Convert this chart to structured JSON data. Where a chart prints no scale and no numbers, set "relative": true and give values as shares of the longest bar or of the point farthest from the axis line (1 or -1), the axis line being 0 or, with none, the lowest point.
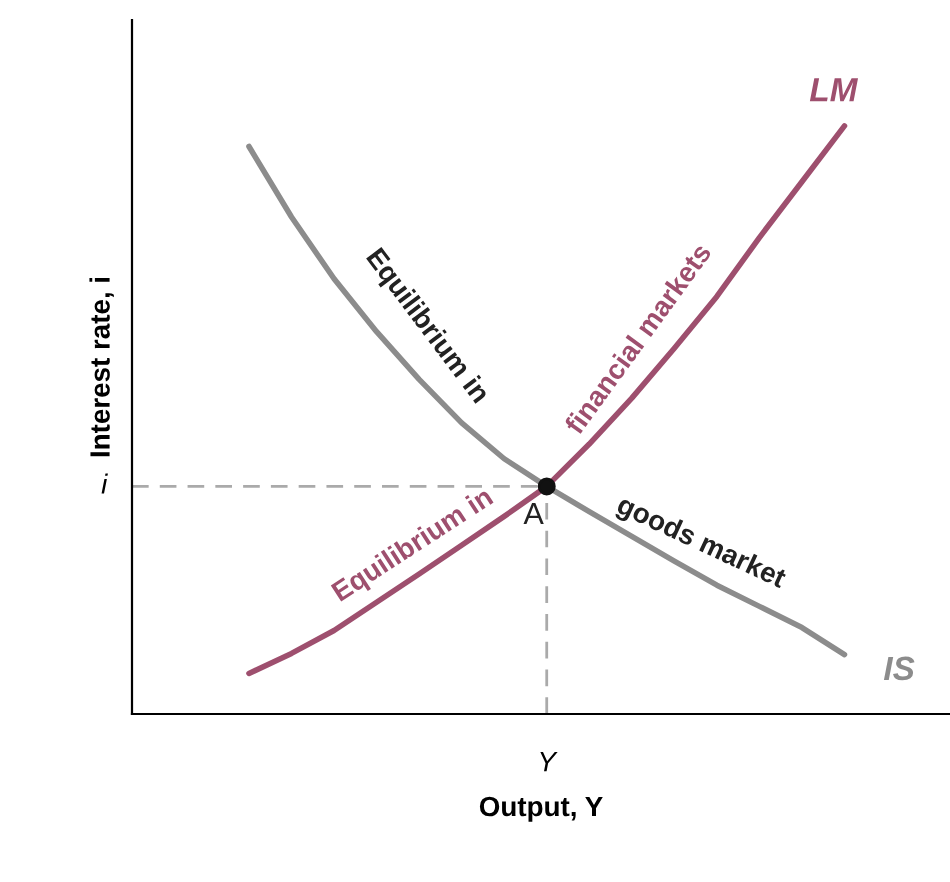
{
  "chart_data": {
    "type": "line",
    "relative": true,
    "xlabel": "Output, Y",
    "ylabel": "Interest rate, i",
    "categories": [
      null,
      null,
      null,
      null,
      null,
      null,
      null,
      null,
      null,
      null,
      null,
      null,
      null,
      null,
      null
    ],
    "series": [
      {
        "name": "LM",
        "color": "#9e4f6e",
        "values": [
          0.069,
          0.103,
          0.142,
          0.19,
          0.238,
          0.287,
          0.336,
          0.387,
          0.459,
          0.537,
          0.622,
          0.71,
          0.81,
          0.905,
          1.0
        ]
      },
      {
        "name": "IS",
        "color": "#8c8c8c",
        "values": [
          0.965,
          0.845,
          0.74,
          0.65,
          0.569,
          0.495,
          0.434,
          0.387,
          0.344,
          0.302,
          0.26,
          0.219,
          0.183,
          0.147,
          0.101
        ]
      }
    ],
    "ref_lines": [
      {
        "axis": "y",
        "value": 0.387,
        "color": "#aaaaaa",
        "line_style": "dashed"
      }
    ],
    "annotations": [
      "Equilibrium in",
      "goods market",
      "Equilibrium in",
      "financial markets",
      "A",
      "Y",
      "i"
    ]
  }
}
